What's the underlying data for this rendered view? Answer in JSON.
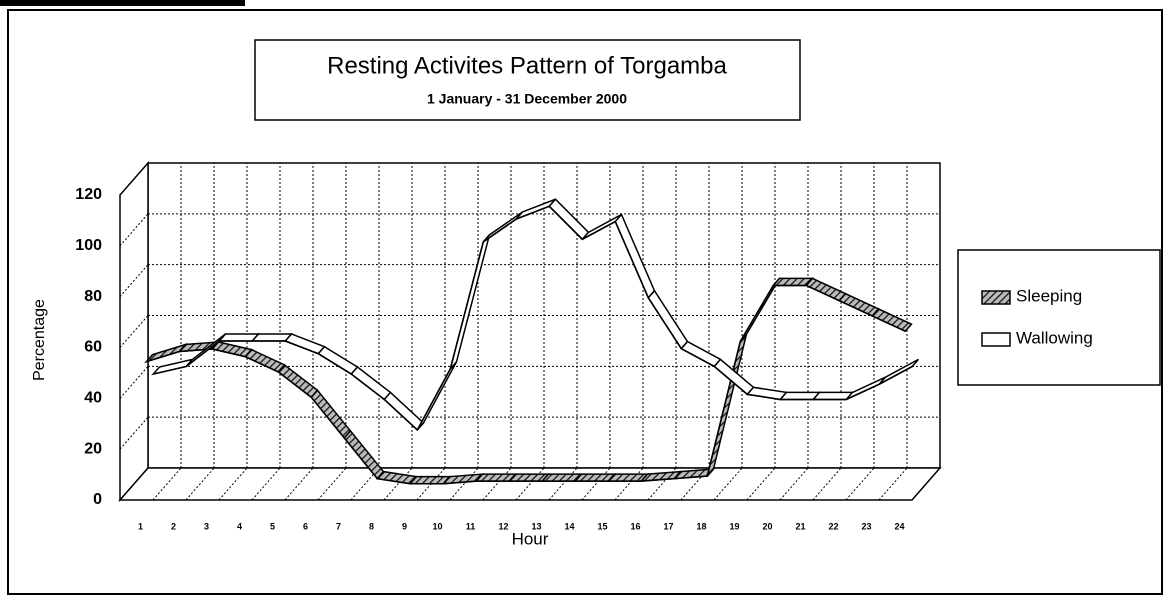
{
  "chart_data": {
    "type": "line3d",
    "title": "Resting Activites Pattern of Torgamba",
    "subtitle": "1 January - 31 December 2000",
    "x_label": "Hour",
    "y_label": "Percentage",
    "categories": [
      "1",
      "2",
      "3",
      "4",
      "5",
      "6",
      "7",
      "8",
      "9",
      "10",
      "11",
      "12",
      "13",
      "14",
      "15",
      "16",
      "17",
      "18",
      "19",
      "20",
      "21",
      "22",
      "23",
      "24"
    ],
    "series": [
      {
        "name": "Sleeping",
        "color": "#555555",
        "values": [
          50,
          54,
          55,
          52,
          46,
          36,
          20,
          4,
          2,
          2,
          3,
          3,
          3,
          3,
          3,
          3,
          4,
          5,
          58,
          80,
          80,
          74,
          68,
          62
        ]
      },
      {
        "name": "Wallowing",
        "color": "#ffffff",
        "values": [
          42,
          45,
          55,
          55,
          55,
          50,
          42,
          32,
          20,
          44,
          94,
          103,
          108,
          95,
          102,
          72,
          52,
          45,
          34,
          32,
          32,
          32,
          38,
          45
        ]
      }
    ],
    "ylim": [
      0,
      120
    ],
    "yticks": [
      0,
      20,
      40,
      60,
      80,
      100,
      120
    ],
    "grid": true,
    "legend": "right"
  }
}
